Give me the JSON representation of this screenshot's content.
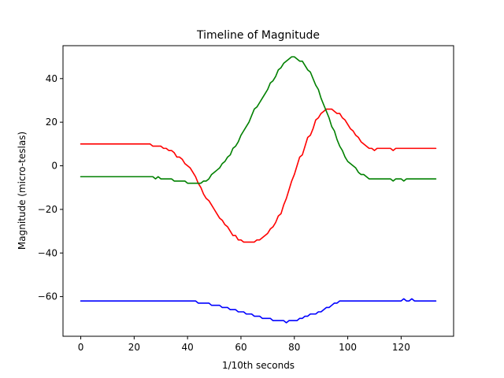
{
  "chart_data": {
    "type": "line",
    "title": "Timeline of Magnitude",
    "xlabel": "1/10th seconds",
    "ylabel": "Magnitude (micro-teslas)",
    "xlim": [
      -6.65,
      139.65
    ],
    "ylim": [
      -78.2,
      55.1
    ],
    "grid": false,
    "legend": "none",
    "xticks": [
      0,
      20,
      40,
      60,
      80,
      100,
      120
    ],
    "yticks": [
      -60,
      -40,
      -20,
      0,
      20,
      40
    ],
    "xtick_labels": [
      "0",
      "20",
      "40",
      "60",
      "80",
      "100",
      "120"
    ],
    "ytick_labels": [
      "−60",
      "−40",
      "−20",
      "0",
      "20",
      "40"
    ],
    "series": [
      {
        "color": "#ff0000",
        "points": [
          [
            0,
            10
          ],
          [
            26,
            10
          ],
          [
            27,
            9
          ],
          [
            30,
            9
          ],
          [
            31,
            8
          ],
          [
            32,
            8
          ],
          [
            33,
            7
          ],
          [
            34,
            7
          ],
          [
            35,
            6
          ],
          [
            36,
            4
          ],
          [
            37,
            4
          ],
          [
            38,
            3
          ],
          [
            39,
            1
          ],
          [
            40,
            0
          ],
          [
            41,
            -1
          ],
          [
            42,
            -3
          ],
          [
            43,
            -5
          ],
          [
            44,
            -8
          ],
          [
            45,
            -10
          ],
          [
            46,
            -13
          ],
          [
            47,
            -15
          ],
          [
            48,
            -16
          ],
          [
            49,
            -18
          ],
          [
            50,
            -20
          ],
          [
            51,
            -22
          ],
          [
            52,
            -24
          ],
          [
            53,
            -25
          ],
          [
            54,
            -27
          ],
          [
            55,
            -28
          ],
          [
            56,
            -30
          ],
          [
            57,
            -32
          ],
          [
            58,
            -32
          ],
          [
            59,
            -34
          ],
          [
            60,
            -34
          ],
          [
            61,
            -35
          ],
          [
            65,
            -35
          ],
          [
            66,
            -34
          ],
          [
            67,
            -34
          ],
          [
            68,
            -33
          ],
          [
            69,
            -32
          ],
          [
            70,
            -31
          ],
          [
            71,
            -29
          ],
          [
            72,
            -28
          ],
          [
            73,
            -26
          ],
          [
            74,
            -23
          ],
          [
            75,
            -22
          ],
          [
            76,
            -18
          ],
          [
            77,
            -15
          ],
          [
            78,
            -11
          ],
          [
            79,
            -7
          ],
          [
            80,
            -4
          ],
          [
            81,
            0
          ],
          [
            82,
            4
          ],
          [
            83,
            5
          ],
          [
            84,
            9
          ],
          [
            85,
            13
          ],
          [
            86,
            14
          ],
          [
            87,
            17
          ],
          [
            88,
            21
          ],
          [
            89,
            22
          ],
          [
            90,
            24
          ],
          [
            91,
            25
          ],
          [
            92,
            26
          ],
          [
            94,
            26
          ],
          [
            95,
            25
          ],
          [
            96,
            24
          ],
          [
            97,
            24
          ],
          [
            98,
            22
          ],
          [
            99,
            21
          ],
          [
            100,
            19
          ],
          [
            101,
            17
          ],
          [
            102,
            16
          ],
          [
            103,
            14
          ],
          [
            104,
            13
          ],
          [
            105,
            11
          ],
          [
            106,
            10
          ],
          [
            107,
            9
          ],
          [
            108,
            8
          ],
          [
            109,
            8
          ],
          [
            110,
            7
          ],
          [
            111,
            8
          ],
          [
            116,
            8
          ],
          [
            117,
            7
          ],
          [
            118,
            8
          ],
          [
            133,
            8
          ]
        ]
      },
      {
        "color": "#008000",
        "points": [
          [
            0,
            -5
          ],
          [
            27,
            -5
          ],
          [
            28,
            -6
          ],
          [
            29,
            -5
          ],
          [
            30,
            -6
          ],
          [
            34,
            -6
          ],
          [
            35,
            -7
          ],
          [
            39,
            -7
          ],
          [
            40,
            -8
          ],
          [
            45,
            -8
          ],
          [
            46,
            -7
          ],
          [
            47,
            -7
          ],
          [
            48,
            -6
          ],
          [
            49,
            -4
          ],
          [
            50,
            -3
          ],
          [
            51,
            -2
          ],
          [
            52,
            -1
          ],
          [
            53,
            1
          ],
          [
            54,
            2
          ],
          [
            55,
            4
          ],
          [
            56,
            5
          ],
          [
            57,
            8
          ],
          [
            58,
            9
          ],
          [
            59,
            11
          ],
          [
            60,
            14
          ],
          [
            61,
            16
          ],
          [
            62,
            18
          ],
          [
            63,
            20
          ],
          [
            64,
            23
          ],
          [
            65,
            26
          ],
          [
            66,
            27
          ],
          [
            67,
            29
          ],
          [
            68,
            31
          ],
          [
            69,
            33
          ],
          [
            70,
            35
          ],
          [
            71,
            38
          ],
          [
            72,
            39
          ],
          [
            73,
            41
          ],
          [
            74,
            44
          ],
          [
            75,
            45
          ],
          [
            76,
            47
          ],
          [
            77,
            48
          ],
          [
            78,
            49
          ],
          [
            79,
            50
          ],
          [
            80,
            50
          ],
          [
            81,
            49
          ],
          [
            82,
            48
          ],
          [
            83,
            48
          ],
          [
            84,
            46
          ],
          [
            85,
            44
          ],
          [
            86,
            43
          ],
          [
            87,
            40
          ],
          [
            88,
            37
          ],
          [
            89,
            35
          ],
          [
            90,
            31
          ],
          [
            91,
            28
          ],
          [
            92,
            25
          ],
          [
            93,
            22
          ],
          [
            94,
            18
          ],
          [
            95,
            16
          ],
          [
            96,
            12
          ],
          [
            97,
            9
          ],
          [
            98,
            7
          ],
          [
            99,
            4
          ],
          [
            100,
            2
          ],
          [
            101,
            1
          ],
          [
            102,
            0
          ],
          [
            103,
            -1
          ],
          [
            104,
            -3
          ],
          [
            105,
            -4
          ],
          [
            106,
            -4
          ],
          [
            107,
            -5
          ],
          [
            108,
            -6
          ],
          [
            116,
            -6
          ],
          [
            117,
            -7
          ],
          [
            118,
            -6
          ],
          [
            120,
            -6
          ],
          [
            121,
            -7
          ],
          [
            122,
            -6
          ],
          [
            133,
            -6
          ]
        ]
      },
      {
        "color": "#0000ff",
        "points": [
          [
            0,
            -62
          ],
          [
            43,
            -62
          ],
          [
            44,
            -63
          ],
          [
            48,
            -63
          ],
          [
            49,
            -64
          ],
          [
            52,
            -64
          ],
          [
            53,
            -65
          ],
          [
            55,
            -65
          ],
          [
            56,
            -66
          ],
          [
            58,
            -66
          ],
          [
            59,
            -67
          ],
          [
            61,
            -67
          ],
          [
            62,
            -68
          ],
          [
            64,
            -68
          ],
          [
            65,
            -69
          ],
          [
            67,
            -69
          ],
          [
            68,
            -70
          ],
          [
            71,
            -70
          ],
          [
            72,
            -71
          ],
          [
            76,
            -71
          ],
          [
            77,
            -72
          ],
          [
            78,
            -71
          ],
          [
            81,
            -71
          ],
          [
            82,
            -70
          ],
          [
            83,
            -70
          ],
          [
            84,
            -69
          ],
          [
            85,
            -69
          ],
          [
            86,
            -68
          ],
          [
            88,
            -68
          ],
          [
            89,
            -67
          ],
          [
            90,
            -67
          ],
          [
            91,
            -66
          ],
          [
            92,
            -65
          ],
          [
            93,
            -65
          ],
          [
            94,
            -64
          ],
          [
            95,
            -63
          ],
          [
            96,
            -63
          ],
          [
            97,
            -62
          ],
          [
            120,
            -62
          ],
          [
            121,
            -61
          ],
          [
            122,
            -62
          ],
          [
            123,
            -62
          ],
          [
            124,
            -61
          ],
          [
            125,
            -62
          ],
          [
            133,
            -62
          ]
        ]
      }
    ]
  }
}
